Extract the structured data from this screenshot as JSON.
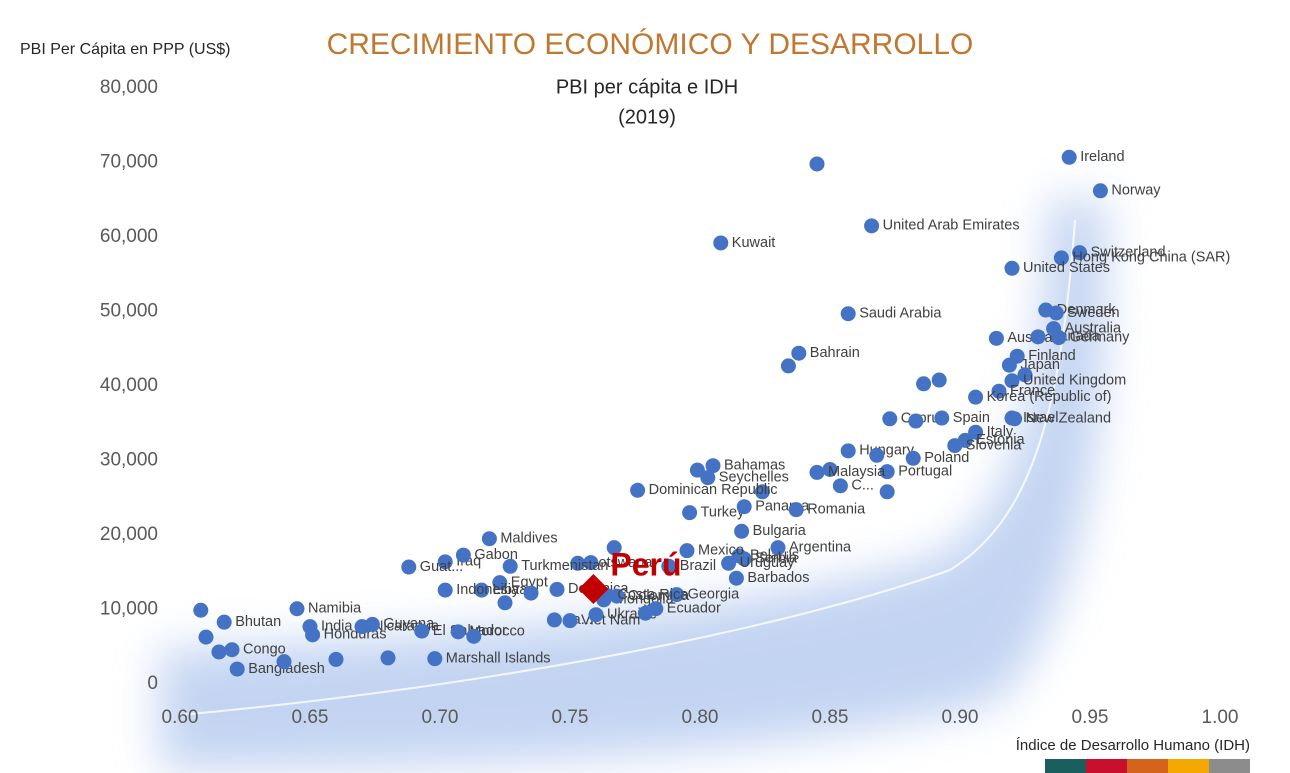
{
  "chart_data": {
    "type": "scatter",
    "title": "CRECIMIENTO ECONÓMICO Y DESARROLLO",
    "subtitle": "PBI per cápita e IDH",
    "year": "(2019)",
    "y_label": "PBI Per Cápita en PPP (US$)",
    "x_label": "Índice de Desarrollo Humano (IDH)",
    "xlim": [
      0.6,
      1.0
    ],
    "ylim": [
      0,
      80000
    ],
    "xticks": [
      {
        "value": 0.6,
        "label": "0.60"
      },
      {
        "value": 0.65,
        "label": "0.65"
      },
      {
        "value": 0.7,
        "label": "0.70"
      },
      {
        "value": 0.75,
        "label": "0.75"
      },
      {
        "value": 0.8,
        "label": "0.80"
      },
      {
        "value": 0.85,
        "label": "0.85"
      },
      {
        "value": 0.9,
        "label": "0.90"
      },
      {
        "value": 0.95,
        "label": "0.95"
      },
      {
        "value": 1.0,
        "label": "1.00"
      }
    ],
    "yticks": [
      0,
      {
        "value": 10000,
        "label": "10,000"
      },
      {
        "value": 20000,
        "label": "20,000"
      },
      {
        "value": 30000,
        "label": "30,000"
      },
      {
        "value": 40000,
        "label": "40,000"
      },
      {
        "value": 50000,
        "label": "50,000"
      },
      {
        "value": 60000,
        "label": "60,000"
      },
      {
        "value": 70000,
        "label": "70,000"
      },
      {
        "value": 80000,
        "label": "80,000"
      }
    ],
    "grid": false,
    "series": [
      {
        "name": null,
        "color": "#4472c4",
        "x": [
          0.942,
          0.954,
          0.845,
          0.808,
          0.866,
          0.946,
          0.939,
          0.92,
          0.857,
          0.933,
          0.937,
          0.838,
          0.834,
          0.914,
          0.93,
          0.936,
          0.938,
          0.922,
          0.919,
          0.925,
          0.92,
          0.915,
          0.906,
          0.892,
          0.886,
          0.873,
          0.893,
          0.883,
          0.92,
          0.906,
          0.902,
          0.898,
          0.921,
          0.857,
          0.868,
          0.882,
          0.872,
          0.872,
          0.854,
          0.85,
          0.845,
          0.805,
          0.803,
          0.799,
          0.824,
          0.796,
          0.817,
          0.837,
          0.816,
          0.815,
          0.83,
          0.814,
          0.817,
          0.811,
          0.795,
          0.776,
          0.767,
          0.753,
          0.758,
          0.719,
          0.727,
          0.702,
          0.709,
          0.723,
          0.716,
          0.702,
          0.688,
          0.645,
          0.617,
          0.62,
          0.65,
          0.651,
          0.67,
          0.674,
          0.622,
          0.693,
          0.707,
          0.725,
          0.745,
          0.744,
          0.75,
          0.698,
          0.76,
          0.763,
          0.768,
          0.783,
          0.791,
          0.788,
          0.608,
          0.61,
          0.615,
          0.64,
          0.66,
          0.68,
          0.713,
          0.735,
          0.764,
          0.779
        ],
        "values": [
          70700,
          66200,
          69800,
          59200,
          61500,
          57900,
          57200,
          55800,
          49700,
          50200,
          49800,
          44400,
          42700,
          46400,
          46600,
          47700,
          46500,
          44000,
          42800,
          41500,
          40700,
          39300,
          38500,
          40800,
          40300,
          35600,
          35700,
          35300,
          35700,
          33800,
          32700,
          32000,
          35600,
          31300,
          30700,
          30300,
          28500,
          25800,
          26600,
          28800,
          28400,
          29300,
          27700,
          28700,
          25800,
          23000,
          23800,
          23400,
          20500,
          17200,
          18300,
          14200,
          16800,
          16200,
          17900,
          26000,
          18300,
          16200,
          16300,
          19500,
          15800,
          16400,
          17300,
          13600,
          12600,
          12600,
          15700,
          10100,
          8300,
          4600,
          7700,
          6600,
          7700,
          8000,
          2000,
          7100,
          7000,
          10900,
          12700,
          8600,
          8500,
          3400,
          9300,
          11300,
          11800,
          10100,
          12000,
          15800,
          9900,
          6300,
          4300,
          3000,
          3300,
          3500,
          6400,
          12200,
          11900,
          9500
        ],
        "labels": [
          "Ireland",
          "Norway",
          null,
          "Kuwait",
          "United Arab Emirates",
          "Switzerland",
          "Hong Kong China (SAR)",
          "United States",
          "Saudi Arabia",
          "Denmark",
          "Sweden",
          "Bahrain",
          null,
          "Austria",
          "Canada",
          "Australia",
          "Germany",
          "Finland",
          "Japan",
          null,
          "United Kingdom",
          "France",
          "Korea (Republic of)",
          null,
          null,
          "Cyprus",
          "Spain",
          null,
          "Israel",
          "Italy",
          "Estonia",
          "Slovenia",
          "New Zealand",
          "Hungary",
          null,
          "Poland",
          "Portugal",
          null,
          "C...",
          null,
          "Malaysia",
          "Bahamas",
          "Seychelles",
          null,
          null,
          "Turkey",
          "Panama",
          "Romania",
          "Bulgaria",
          "Belarus",
          "Argentina",
          "Barbados",
          "Serbia",
          "Uruguay",
          "Mexico",
          "Dominican Republic",
          null,
          "Botswana",
          null,
          "Maldives",
          "Turkmenistan",
          "Iraq",
          "Gabon",
          "Egypt",
          "Libya",
          "Indonesia",
          "Guat...",
          "Namibia",
          "Bhutan",
          "Congo",
          "India",
          "Honduras",
          "Nicaragua",
          "Guyana",
          "Bangladesh",
          "El Salvador",
          "Morocco",
          null,
          "Dominica",
          "Ja...",
          "Viet Nam",
          "Marshall Islands",
          "Ukraine",
          "Mongolia",
          "Colombia",
          "Ecuador",
          "Georgia",
          "Brazil",
          null,
          null,
          null,
          null,
          null,
          null,
          null,
          null,
          "Costa Rica",
          null
        ]
      }
    ],
    "highlight": {
      "name": "Perú",
      "x": 0.759,
      "value": 12750,
      "color": "#c00000"
    },
    "legend_colors": [
      "#1b5e5e",
      "#c8102e",
      "#d4641c",
      "#f5a800",
      "#8c8c8c"
    ]
  }
}
